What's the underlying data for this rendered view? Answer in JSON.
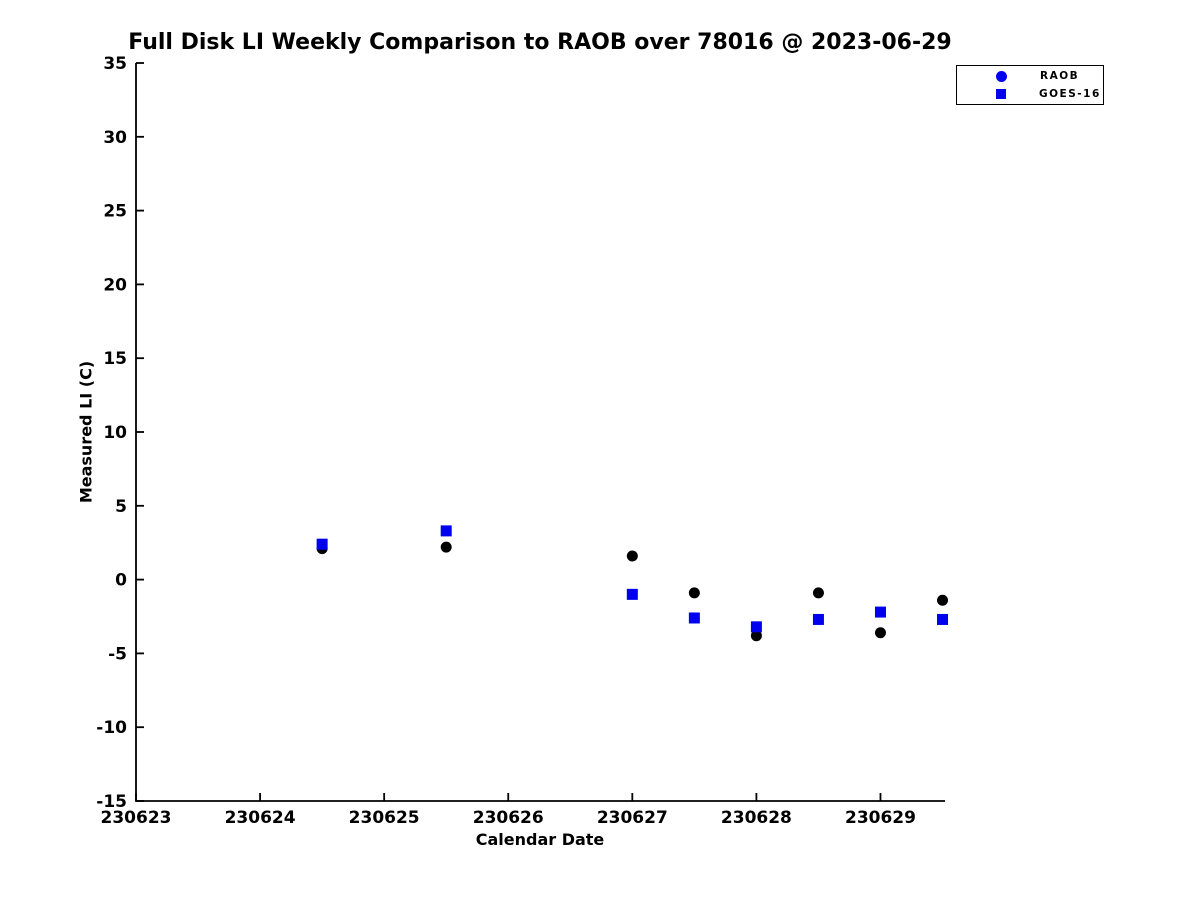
{
  "chart_data": {
    "type": "scatter",
    "title": "Full Disk LI Weekly Comparison to RAOB over 78016 @ 2023-06-29",
    "xlabel": "Calendar Date",
    "ylabel": "Measured LI (C)",
    "xlim": [
      230623,
      230629.52
    ],
    "ylim": [
      -15,
      35
    ],
    "x_ticks": [
      230623,
      230624,
      230625,
      230626,
      230627,
      230628,
      230629
    ],
    "y_ticks": [
      35,
      30,
      25,
      20,
      15,
      10,
      5,
      0,
      -5,
      -10,
      -15
    ],
    "grid": false,
    "legend_position": "top-right-outside",
    "x": [
      230624.5,
      230625.5,
      230627.0,
      230627.5,
      230628.0,
      230628.5,
      230629.0,
      230629.5
    ],
    "series": [
      {
        "name": "RAOB",
        "marker": "circle",
        "color": "#000000",
        "legend_color": "#0000ee",
        "values": [
          2.1,
          2.2,
          1.6,
          -0.9,
          -3.8,
          -0.9,
          -3.6,
          -1.4
        ]
      },
      {
        "name": "GOES-16",
        "marker": "square",
        "color": "#0000ee",
        "legend_color": "#0000ee",
        "values": [
          2.4,
          3.3,
          -1.0,
          -2.6,
          -3.2,
          -2.7,
          -2.2,
          -2.7
        ]
      }
    ],
    "axis_color": "#000000",
    "text_color": "#000000"
  }
}
